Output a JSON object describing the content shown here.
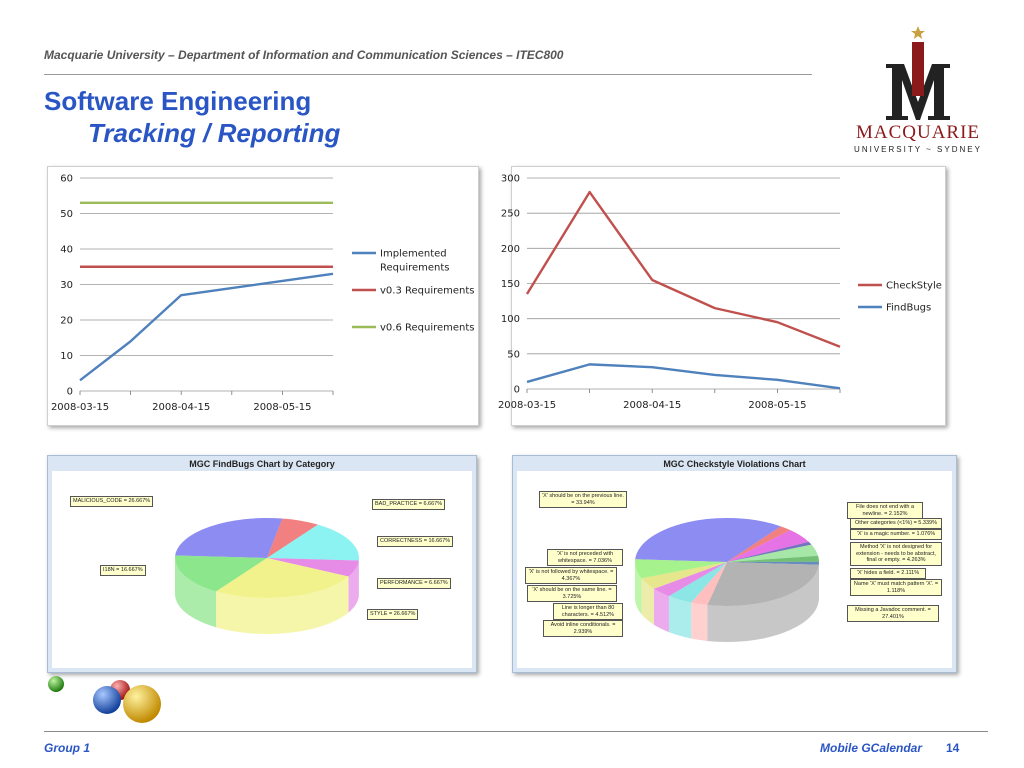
{
  "header": {
    "course": "Macquarie University – Department of Information and Communication Sciences – ITEC800",
    "title": "Software Engineering",
    "subtitle": "Tracking / Reporting"
  },
  "logo": {
    "name": "MACQUARIE",
    "tag": "UNIVERSITY ~ SYDNEY",
    "colors": {
      "red": "#8b1a1a",
      "dark": "#222222",
      "gold": "#c8a040"
    }
  },
  "footer": {
    "group": "Group 1",
    "project": "Mobile GCalendar",
    "page": "14"
  },
  "colors": {
    "title": "#2a55c4",
    "blue": "#4f81bd",
    "red": "#c0504d",
    "green": "#9bbb59"
  },
  "chart_data": [
    {
      "type": "line",
      "x_ticks": [
        "2008-03-15",
        "2008-04-15",
        "2008-05-15"
      ],
      "x": [
        "2008-03-15",
        "2008-03-31",
        "2008-04-15",
        "2008-05-01",
        "2008-05-15",
        "2008-05-31"
      ],
      "ylim": [
        0,
        60
      ],
      "y_ticks": [
        0,
        10,
        20,
        30,
        40,
        50,
        60
      ],
      "series": [
        {
          "name": "Implemented Requirements",
          "color": "#4f81bd",
          "values": [
            3,
            14,
            27,
            29,
            31,
            33
          ]
        },
        {
          "name": "v0.3 Requirements",
          "color": "#c0504d",
          "values": [
            35,
            35,
            35,
            35,
            35,
            35
          ]
        },
        {
          "name": "v0.6 Requirements",
          "color": "#9bbb59",
          "values": [
            53,
            53,
            53,
            53,
            53,
            53
          ]
        }
      ],
      "legend_position": "right",
      "grid": true
    },
    {
      "type": "line",
      "x_ticks": [
        "2008-03-15",
        "2008-04-15",
        "2008-05-15"
      ],
      "x": [
        "2008-03-15",
        "2008-03-31",
        "2008-04-15",
        "2008-05-01",
        "2008-05-15",
        "2008-05-31"
      ],
      "ylim": [
        0,
        300
      ],
      "y_ticks": [
        0,
        50,
        100,
        150,
        200,
        250,
        300
      ],
      "series": [
        {
          "name": "CheckStyle",
          "color": "#c0504d",
          "values": [
            135,
            280,
            155,
            115,
            95,
            60
          ]
        },
        {
          "name": "FindBugs",
          "color": "#4f81bd",
          "values": [
            10,
            35,
            31,
            20,
            13,
            1
          ]
        }
      ],
      "legend_position": "right",
      "grid": true
    },
    {
      "type": "pie",
      "title": "MGC FindBugs Chart by Category",
      "labels": [
        "MALICIOUS_CODE = 26.667%",
        "BAD_PRACTICE = 6.667%",
        "CORRECTNESS = 16.667%",
        "PERFORMANCE = 6.667%",
        "STYLE = 26.667%",
        "I18N = 16.667%"
      ],
      "values": [
        26.667,
        6.667,
        16.667,
        6.667,
        26.667,
        16.667
      ],
      "colors": [
        "#6666ee",
        "#ee5555",
        "#66eeee",
        "#dd66dd",
        "#eeee66",
        "#66dd66"
      ]
    },
    {
      "type": "pie",
      "title": "MGC Checkstyle Violations Chart",
      "labels": [
        "'X' should be on the previous line. = 33.94%",
        "File does not end with a newline. = 2.152%",
        "Other categories (<1%) = 5.339%",
        "'X' is a magic number. = 1.076%",
        "Method 'X' is not designed for extension - needs to be abstract, final or empty. = 4.263%",
        "'X' hides a field. = 2.111%",
        "Name 'X' must match pattern 'X'. = 1.118%",
        "Missing a Javadoc comment. = 27.401%",
        "Avoid inline conditionals. = 2.939%",
        "Line is longer than 80 characters. = 4.512%",
        "'X' should be on the same line. = 3.725%",
        "'X' is not followed by whitespace. = 4.367%",
        "'X' is not preceded with whitespace. = 7.036%"
      ],
      "values": [
        33.94,
        2.152,
        5.339,
        1.076,
        4.263,
        2.111,
        1.118,
        27.401,
        2.939,
        4.512,
        3.725,
        4.367,
        7.036
      ],
      "colors": [
        "#6666ee",
        "#ee5555",
        "#dd44dd",
        "#4444aa",
        "#88dd88",
        "#44aa44",
        "#3366aa",
        "#999999",
        "#ffaaaa",
        "#66dddd",
        "#dd66dd",
        "#dddd66",
        "#88ee66"
      ]
    }
  ]
}
